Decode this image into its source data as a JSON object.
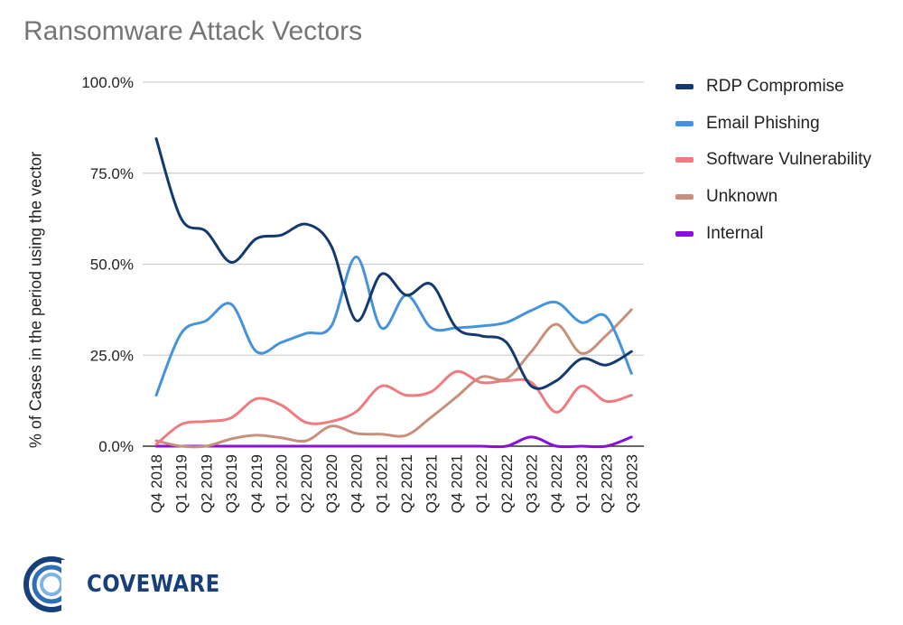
{
  "chart_data": {
    "type": "line",
    "title": "Ransomware Attack Vectors",
    "xlabel": "",
    "ylabel": "% of Cases in the period using the vector",
    "ylim": [
      0,
      100
    ],
    "yticks": [
      "0.0%",
      "25.0%",
      "50.0%",
      "75.0%",
      "100.0%"
    ],
    "ytick_values": [
      0,
      25,
      50,
      75,
      100
    ],
    "grid": true,
    "legend_position": "right",
    "categories": [
      "Q4 2018",
      "Q1 2019",
      "Q2 2019",
      "Q3 2019",
      "Q4 2019",
      "Q1 2020",
      "Q2 2020",
      "Q3 2020",
      "Q4 2020",
      "Q1 2021",
      "Q2 2021",
      "Q3 2021",
      "Q4 2021",
      "Q1 2022",
      "Q2 2022",
      "Q3 2022",
      "Q4 2022",
      "Q1 2023",
      "Q2 2023",
      "Q3 2023"
    ],
    "series": [
      {
        "name": "RDP Compromise",
        "color": "#133a70",
        "values": [
          84.5,
          62.5,
          59,
          50.5,
          57,
          58,
          61,
          55,
          34.5,
          47.3,
          41.5,
          44.5,
          32.5,
          30.3,
          28.5,
          16.5,
          18,
          24,
          22.3,
          26
        ]
      },
      {
        "name": "Email Phishing",
        "color": "#4593dc",
        "values": [
          14,
          31,
          34.5,
          39,
          26,
          28.5,
          31,
          33,
          52,
          32.5,
          41.5,
          32.5,
          32.5,
          33,
          34,
          37.3,
          39.5,
          34,
          35.5,
          20
        ]
      },
      {
        "name": "Software Vulnerability",
        "color": "#ef7b80",
        "values": [
          0.5,
          6,
          6.8,
          7.8,
          13,
          11.3,
          6.5,
          6.8,
          9.5,
          16.5,
          14,
          15,
          20.5,
          17.5,
          18,
          17.5,
          9.3,
          16.5,
          12.3,
          14
        ]
      },
      {
        "name": "Unknown",
        "color": "#c8907a",
        "values": [
          1.5,
          0,
          0,
          2,
          3,
          2.3,
          1.5,
          5.5,
          3.5,
          3.3,
          3,
          8,
          13.5,
          19,
          18.5,
          26,
          33.5,
          25.5,
          30.5,
          37.5
        ]
      },
      {
        "name": "Internal",
        "color": "#8a10d8",
        "values": [
          0,
          0,
          0,
          0,
          0,
          0,
          0,
          0,
          0,
          0,
          0,
          0,
          0,
          0,
          0,
          2.5,
          0,
          0,
          0,
          2.5
        ]
      }
    ]
  },
  "logo": {
    "text": "COVEWARE"
  }
}
